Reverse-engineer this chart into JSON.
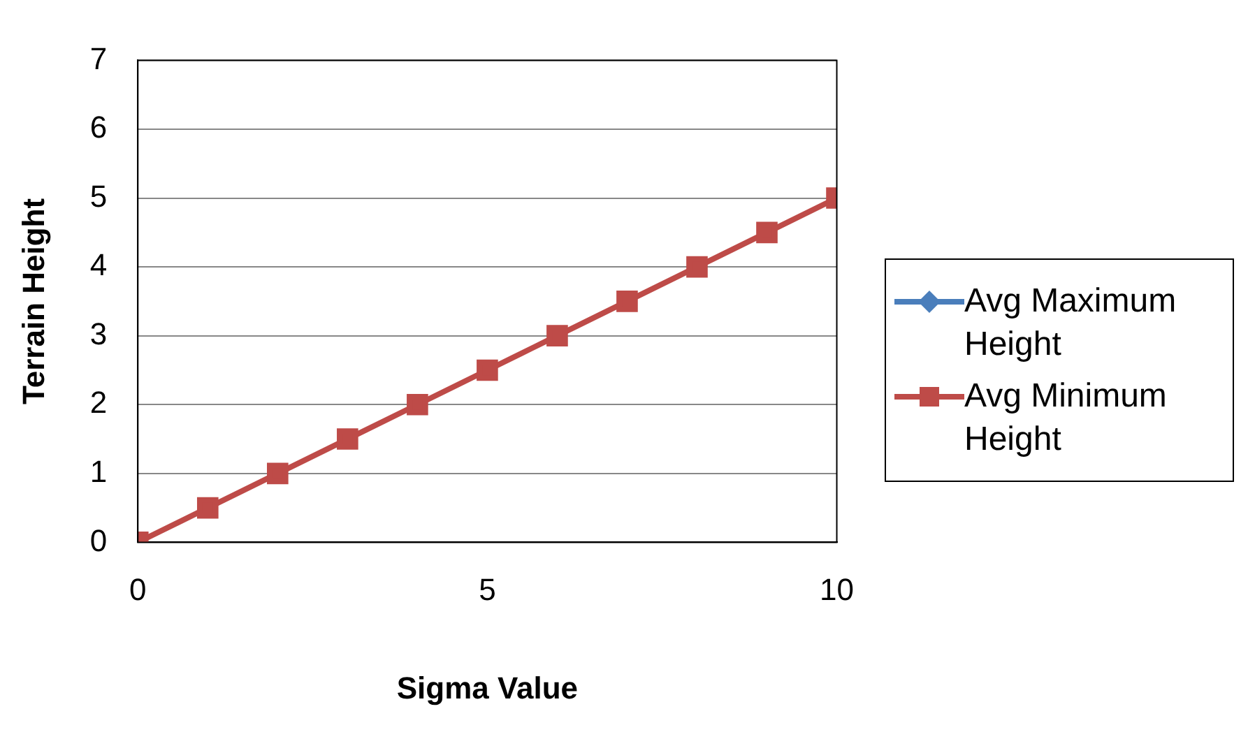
{
  "chart_data": {
    "type": "line",
    "xlabel": "Sigma Value",
    "ylabel": "Terrain Height",
    "x": [
      0,
      1,
      2,
      3,
      4,
      5,
      6,
      7,
      8,
      9,
      10
    ],
    "series": [
      {
        "name": "Avg Maximum Height",
        "color": "#4a7ebb",
        "marker": "diamond",
        "values": [
          null,
          null,
          null,
          null,
          null,
          null,
          null,
          null,
          null,
          null,
          null
        ]
      },
      {
        "name": "Avg Minimum Height",
        "color": "#be4b48",
        "marker": "square",
        "values": [
          0,
          0.5,
          1,
          1.5,
          2,
          2.5,
          3,
          3.5,
          4,
          4.5,
          5
        ]
      }
    ],
    "xlim": [
      0,
      10
    ],
    "xticks": [
      0,
      5,
      10
    ],
    "ylim": [
      0,
      7
    ],
    "yticks": [
      0,
      1,
      2,
      3,
      4,
      5,
      6,
      7
    ],
    "grid": "y",
    "legend": "right",
    "line_style": "solid"
  }
}
